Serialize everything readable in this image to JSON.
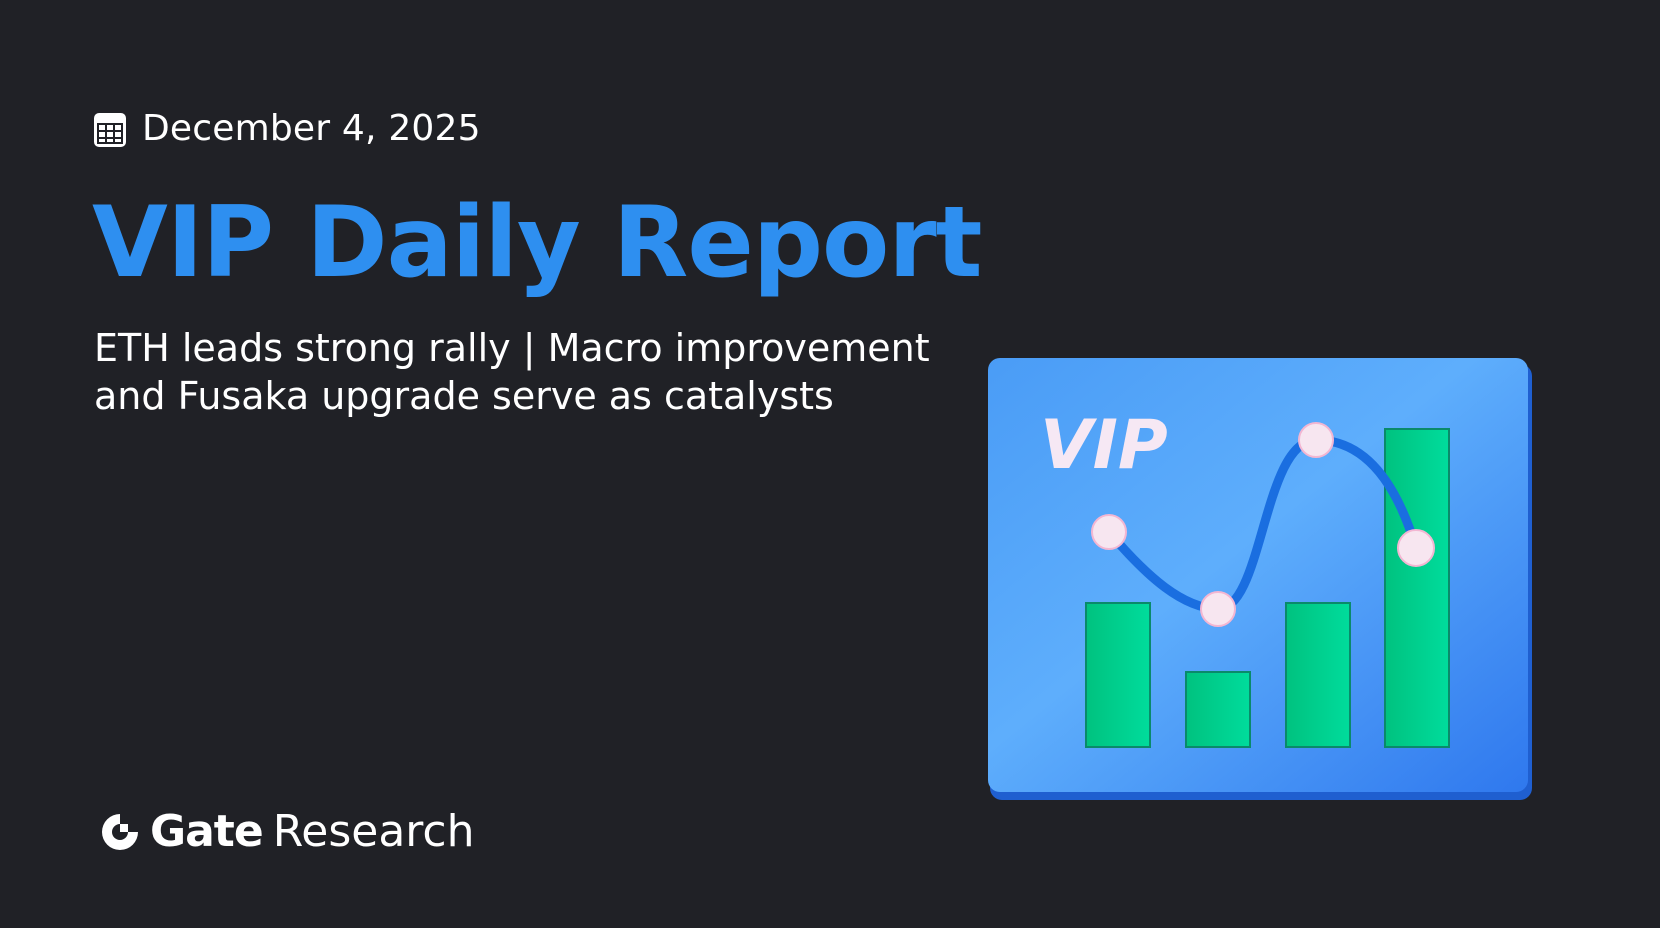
{
  "header": {
    "date": "December 4, 2025",
    "date_icon": "calendar-icon"
  },
  "title": "VIP Daily Report",
  "subtitle": "ETH leads strong rally | Macro improvement and Fusaka upgrade serve as catalysts",
  "illustration": {
    "badge_text": "VIP",
    "card_color": "#3b8cf5",
    "bar_color": "#00d18f"
  },
  "brand": {
    "name": "Gate",
    "suffix": "Research",
    "logo_icon": "gate-logo-icon"
  },
  "colors": {
    "background": "#202126",
    "accent": "#2e8ff0"
  }
}
